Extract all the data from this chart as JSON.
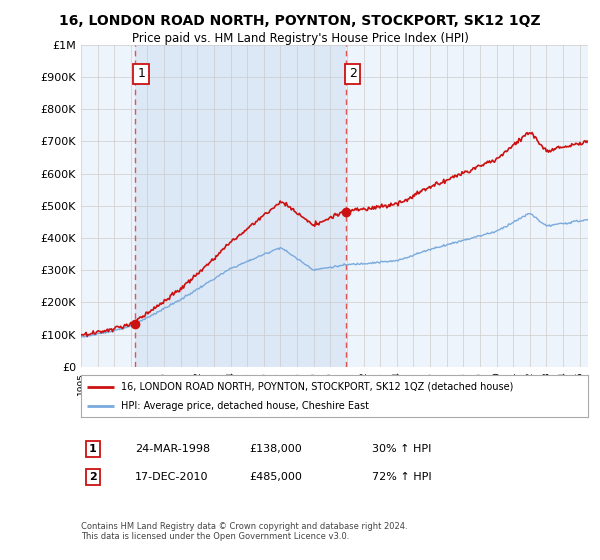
{
  "title": "16, LONDON ROAD NORTH, POYNTON, STOCKPORT, SK12 1QZ",
  "subtitle": "Price paid vs. HM Land Registry's House Price Index (HPI)",
  "legend_line1": "16, LONDON ROAD NORTH, POYNTON, STOCKPORT, SK12 1QZ (detached house)",
  "legend_line2": "HPI: Average price, detached house, Cheshire East",
  "sale1_date": "24-MAR-1998",
  "sale1_price": "£138,000",
  "sale1_hpi": "30% ↑ HPI",
  "sale2_date": "17-DEC-2010",
  "sale2_price": "£485,000",
  "sale2_hpi": "72% ↑ HPI",
  "footer": "Contains HM Land Registry data © Crown copyright and database right 2024.\nThis data is licensed under the Open Government Licence v3.0.",
  "sale1_year": 1998.23,
  "sale2_year": 2010.96,
  "sale1_value": 138000,
  "sale2_value": 485000,
  "hpi_color": "#7aaadd",
  "property_color": "#cc1111",
  "dashed_color": "#dd5555",
  "background_color": "#ffffff",
  "plot_bg_color": "#eef4fb",
  "grid_color": "#cccccc",
  "shade_color": "#dce8f5",
  "ylim_min": 0,
  "ylim_max": 1000000,
  "xmin": 1995,
  "xmax": 2025.5
}
